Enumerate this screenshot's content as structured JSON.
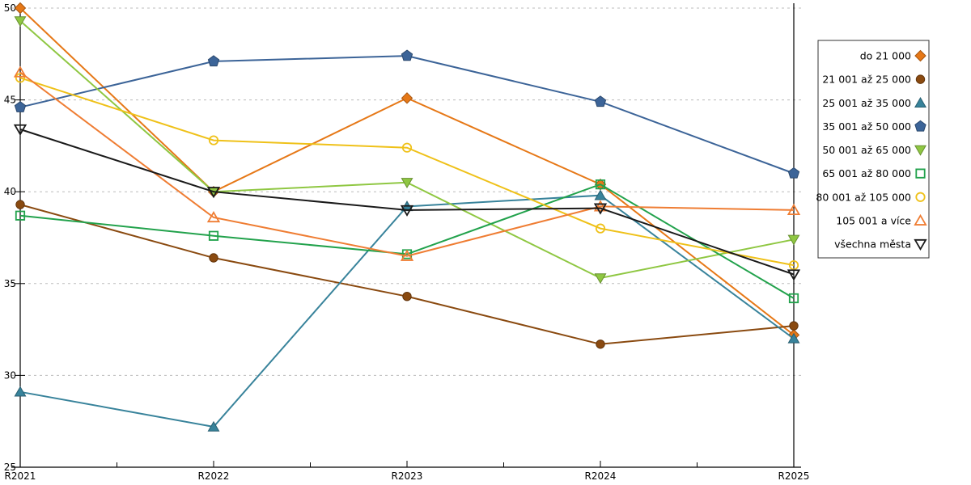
{
  "chart_data": {
    "type": "line",
    "title": "",
    "xlabel": "",
    "ylabel": "",
    "x_categories": [
      "R2021",
      "R2022",
      "R2023",
      "R2024",
      "R2025"
    ],
    "y_axis": {
      "min": 25,
      "max": 50,
      "tick_step": 5,
      "tick_labels": [
        "25",
        "30",
        "35",
        "40",
        "45",
        "50"
      ]
    },
    "grid": {
      "horizontal_dashed": true,
      "gridline_values": [
        30,
        35,
        40,
        45,
        50
      ],
      "color": "#bbbbbb"
    },
    "legend_position": "right-top-boxed",
    "series": [
      {
        "name": "do 21 000",
        "marker": "diamond",
        "fill": "filled",
        "color": "#e67817",
        "values": [
          50.0,
          40.0,
          45.1,
          40.4,
          32.2
        ]
      },
      {
        "name": "21 001 až 25 000",
        "marker": "circle",
        "fill": "filled",
        "color": "#8a4a10",
        "values": [
          39.3,
          36.4,
          34.3,
          31.7,
          32.7
        ]
      },
      {
        "name": "25 001 až 35 000",
        "marker": "triangle-up",
        "fill": "filled",
        "color": "#38839b",
        "values": [
          29.1,
          27.2,
          39.2,
          39.8,
          32.0
        ]
      },
      {
        "name": "35 001 až 50 000",
        "marker": "pentagon",
        "fill": "filled",
        "color": "#3c6498",
        "values": [
          44.6,
          47.1,
          47.4,
          44.9,
          41.0
        ]
      },
      {
        "name": "50 001 až 65 000",
        "marker": "triangle-down",
        "fill": "filled",
        "color": "#8fc742",
        "values": [
          49.3,
          40.0,
          40.5,
          35.3,
          37.4
        ]
      },
      {
        "name": "65 001 až 80 000",
        "marker": "square",
        "fill": "open",
        "color": "#22a24c",
        "values": [
          38.7,
          37.6,
          36.6,
          40.4,
          34.2
        ]
      },
      {
        "name": "80 001 až 105 000",
        "marker": "circle",
        "fill": "open",
        "color": "#efc119",
        "values": [
          46.2,
          42.8,
          42.4,
          38.0,
          36.0
        ]
      },
      {
        "name": "105 001 a více",
        "marker": "triangle-up",
        "fill": "open",
        "color": "#ef7d33",
        "values": [
          46.5,
          38.6,
          36.5,
          39.2,
          39.0
        ]
      },
      {
        "name": "všechna města",
        "marker": "triangle-down",
        "fill": "open",
        "color": "#1a1a1a",
        "values": [
          43.4,
          40.0,
          39.0,
          39.1,
          35.5
        ]
      }
    ]
  }
}
